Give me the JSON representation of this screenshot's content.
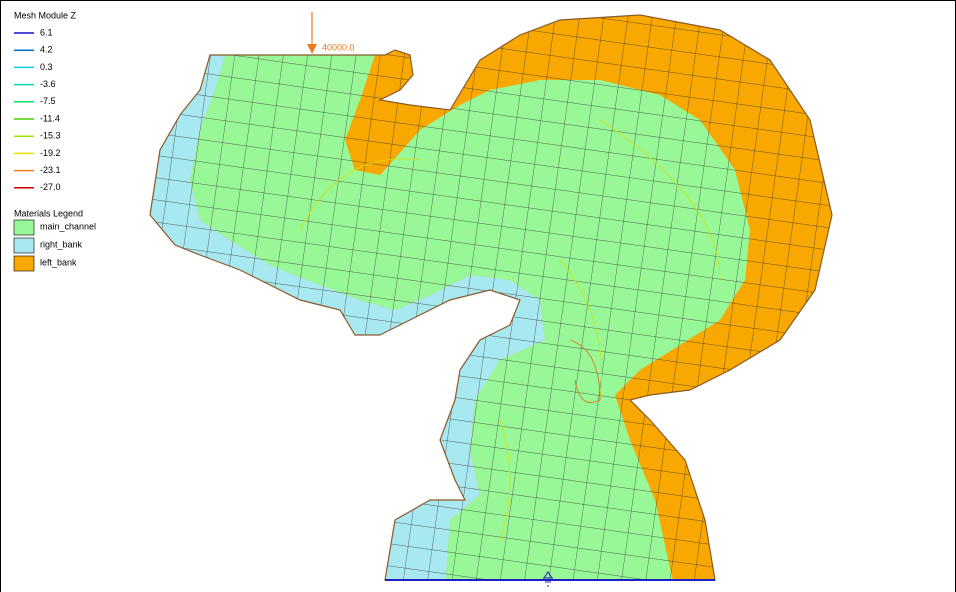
{
  "contour_legend": {
    "title": "Mesh Module Z",
    "items": [
      {
        "label": "6.1",
        "color": "#1010c8"
      },
      {
        "label": "4.2",
        "color": "#0070d0"
      },
      {
        "label": "0.3",
        "color": "#00d0e8"
      },
      {
        "label": "-3.6",
        "color": "#00d8b0"
      },
      {
        "label": "-7.5",
        "color": "#00e060"
      },
      {
        "label": "-11.4",
        "color": "#40d000"
      },
      {
        "label": "-15.3",
        "color": "#a0e000"
      },
      {
        "label": "-19.2",
        "color": "#e6e000"
      },
      {
        "label": "-23.1",
        "color": "#f08020"
      },
      {
        "label": "-27.0",
        "color": "#d00000"
      }
    ]
  },
  "materials_legend": {
    "title": "Materials Legend",
    "items": [
      {
        "label": "main_channel",
        "color": "#98f898"
      },
      {
        "label": "right_bank",
        "color": "#a8e8f0"
      },
      {
        "label": "left_bank",
        "color": "#f8a800"
      }
    ]
  },
  "annotation": "40000.0"
}
